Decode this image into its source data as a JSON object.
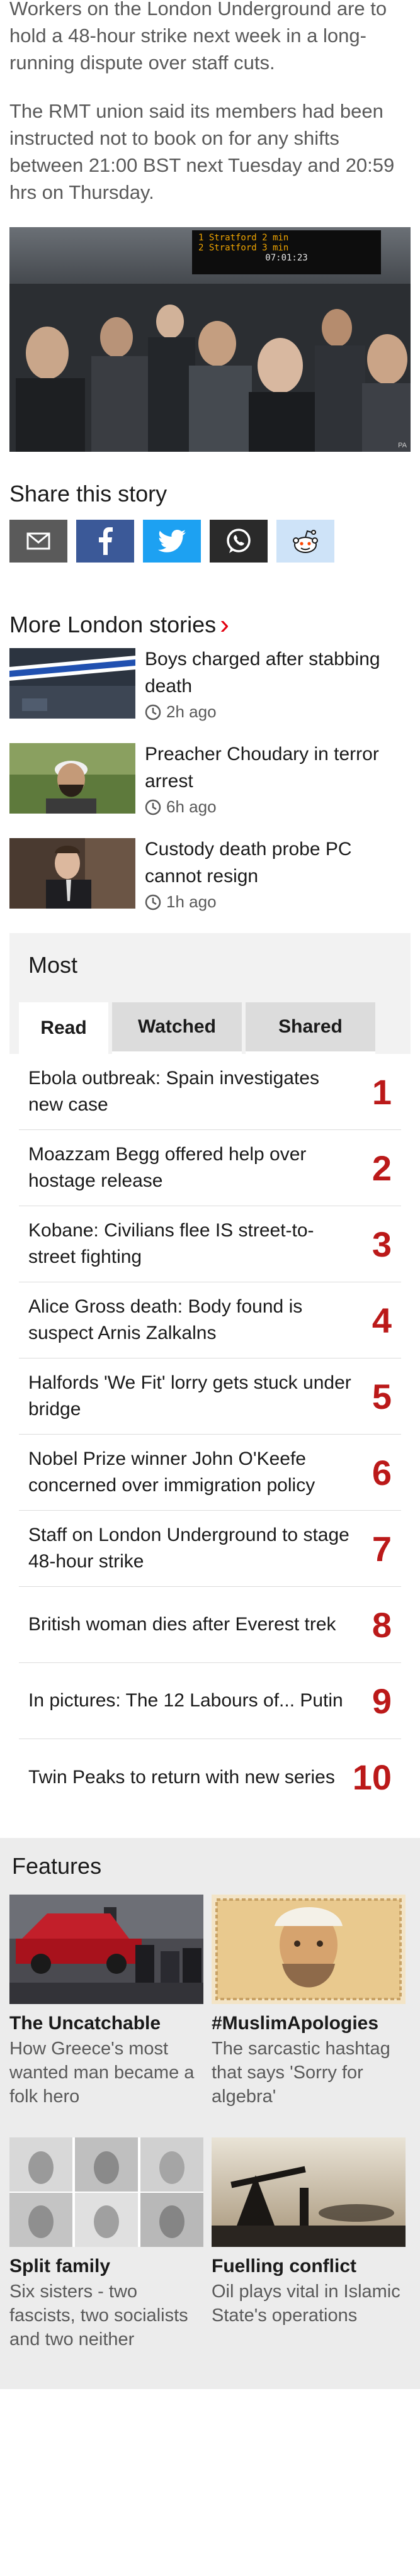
{
  "article": {
    "para1": "Workers on the London Underground are to hold a 48-hour strike next week in a long-running dispute over staff cuts.",
    "para2": "The RMT union said its members had been instructed not to book on for any shifts between 21:00 BST next Tuesday and 20:59 hrs on Thursday.",
    "image_board_line1": "1 Stratford   2 min",
    "image_board_line2": "2 Stratford   3 min",
    "image_board_clock": "07:01:23",
    "image_credit": "PA"
  },
  "share": {
    "title": "Share this story",
    "buttons": [
      {
        "name": "email",
        "color": "#5a5a5a"
      },
      {
        "name": "facebook",
        "color": "#3b5998"
      },
      {
        "name": "twitter",
        "color": "#1da1f2"
      },
      {
        "name": "whatsapp",
        "color": "#2a2a2a"
      },
      {
        "name": "reddit",
        "color": "#cee3f8"
      }
    ]
  },
  "more": {
    "title": "More London stories",
    "stories": [
      {
        "headline": "Boys charged after stabbing death",
        "time": "2h ago",
        "thumb": "police-tape"
      },
      {
        "headline": "Preacher Choudary in terror arrest",
        "time": "6h ago",
        "thumb": "man-portrait"
      },
      {
        "headline": "Custody death probe PC cannot resign",
        "time": "1h ago",
        "thumb": "man-suit"
      }
    ]
  },
  "most": {
    "title": "Most",
    "tabs": [
      "Read",
      "Watched",
      "Shared"
    ],
    "active_tab": "Read",
    "accent": "#bb1919",
    "items": [
      {
        "rank": "1",
        "headline": "Ebola outbreak: Spain investigates new case"
      },
      {
        "rank": "2",
        "headline": "Moazzam Begg offered help over hostage release"
      },
      {
        "rank": "3",
        "headline": "Kobane: Civilians flee IS street-to-street fighting"
      },
      {
        "rank": "4",
        "headline": "Alice Gross death: Body found is suspect Arnis Zalkalns"
      },
      {
        "rank": "5",
        "headline": "Halfords 'We Fit' lorry gets stuck under bridge"
      },
      {
        "rank": "6",
        "headline": "Nobel Prize winner John O'Keefe concerned over immigration policy"
      },
      {
        "rank": "7",
        "headline": "Staff on London Underground to stage 48-hour strike"
      },
      {
        "rank": "8",
        "headline": "British woman dies after Everest trek"
      },
      {
        "rank": "9",
        "headline": "In pictures: The 12 Labours of... Putin"
      },
      {
        "rank": "10",
        "headline": "Twin Peaks to return with new series"
      }
    ]
  },
  "features": {
    "title": "Features",
    "items": [
      {
        "title": "The Uncatchable",
        "desc": "How Greece's most wanted man became a folk hero"
      },
      {
        "title": "#MuslimApologies",
        "desc": "The sarcastic hashtag that says 'Sorry for algebra'"
      },
      {
        "title": "Split family",
        "desc": "Six sisters - two fascists, two socialists and two neither"
      },
      {
        "title": "Fuelling conflict",
        "desc": "Oil plays vital in Islamic State's operations"
      }
    ]
  }
}
